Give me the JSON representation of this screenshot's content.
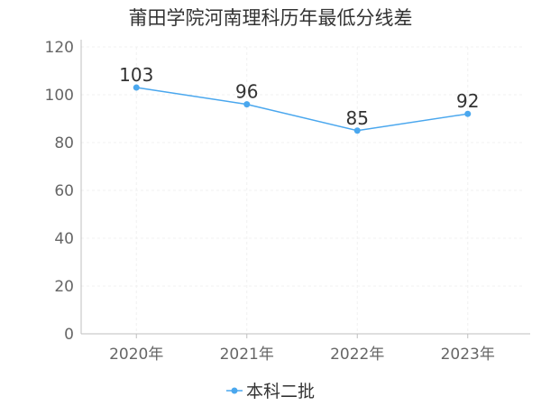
{
  "chart_data": {
    "type": "line",
    "title": "莆田学院河南理科历年最低分线差",
    "categories": [
      "2020年",
      "2021年",
      "2022年",
      "2023年"
    ],
    "series": [
      {
        "name": "本科二批",
        "values": [
          103,
          96,
          85,
          92
        ],
        "color": "#4aa7ee"
      }
    ],
    "ylim": [
      0,
      120
    ],
    "yticks": [
      0,
      20,
      40,
      60,
      80,
      100,
      120
    ],
    "grid": true,
    "legend_position": "bottom-center",
    "xlabel": "",
    "ylabel": ""
  }
}
